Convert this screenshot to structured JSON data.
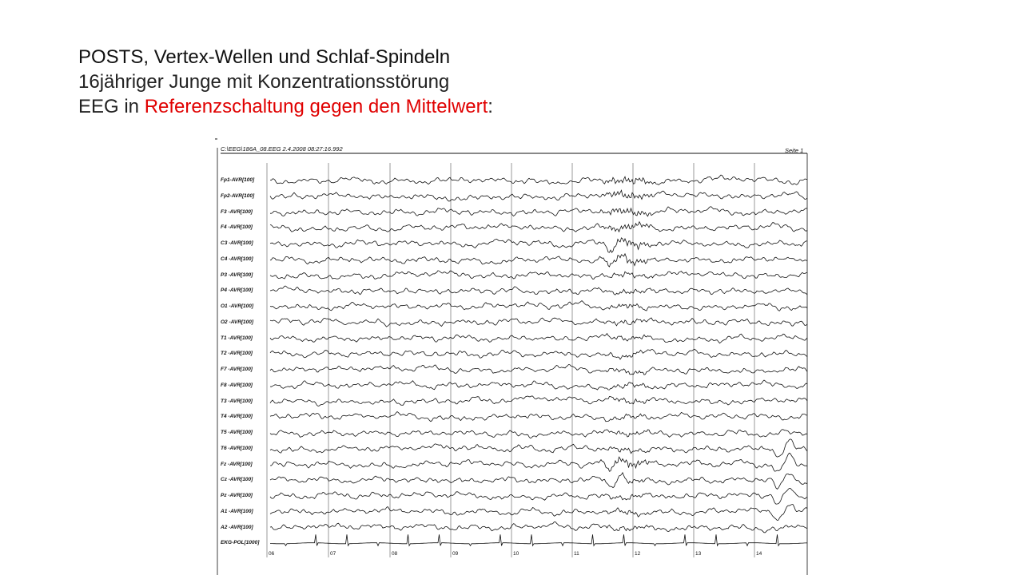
{
  "title": {
    "line1": "POSTS, Vertex-Wellen und Schlaf-Spindeln",
    "line2": "16jähriger Junge mit Konzentrationsstörung",
    "line3_prefix": "EEG in ",
    "line3_highlight": "Referenzschaltung gegen den Mittelwert",
    "line3_suffix": ":"
  },
  "recording": {
    "header_path": "C:\\EEG\\186A_08.EEG  2.4.2008  08:27:16.992",
    "page_label": "Seite 1",
    "channels": [
      "Fp1-AVR[100]",
      "Fp2-AVR[100]",
      "F3 -AVR[100]",
      "F4 -AVR[100]",
      "C3 -AVR[100]",
      "C4 -AVR[100]",
      "P3 -AVR[100]",
      "P4 -AVR[100]",
      "O1 -AVR[100]",
      "O2 -AVR[100]",
      "T1 -AVR[100]",
      "T2 -AVR[100]",
      "F7 -AVR[100]",
      "F8 -AVR[100]",
      "T3 -AVR[100]",
      "T4 -AVR[100]",
      "T5 -AVR[100]",
      "T6 -AVR[100]",
      "Fz -AVR[100]",
      "Cz -AVR[100]",
      "Pz -AVR[100]",
      "A1 -AVR[100]",
      "A2 -AVR[100]",
      "EKG-POL[1000]"
    ],
    "second_marks": [
      "06",
      "07",
      "08",
      "09",
      "10",
      "11",
      "12",
      "13",
      "14"
    ]
  },
  "colors": {
    "text": "#222222",
    "highlight": "#e00000",
    "trace": "#111111"
  }
}
